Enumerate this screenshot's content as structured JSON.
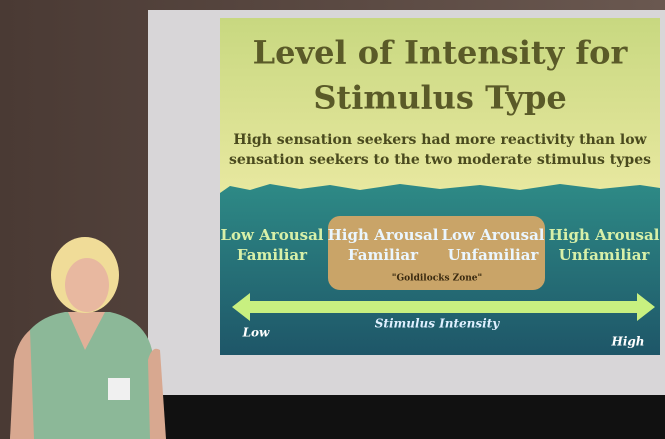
{
  "slide": {
    "title": [
      "Level of Intensity for",
      "Stimulus Type"
    ],
    "subtitle": [
      "High sensation seekers had more reactivity than low",
      "sensation seekers to the two moderate stimulus types"
    ],
    "categories": [
      [
        "Low Arousal",
        "Familiar"
      ],
      [
        "High Arousal",
        "Familiar"
      ],
      [
        "Low Arousal",
        "Unfamiliar"
      ],
      [
        "High Arousal",
        "Unfamiliar"
      ]
    ],
    "zone_label": "\"Goldilocks Zone\"",
    "axis_label": "Stimulus Intensity",
    "low_label": "Low",
    "high_label": "High"
  }
}
